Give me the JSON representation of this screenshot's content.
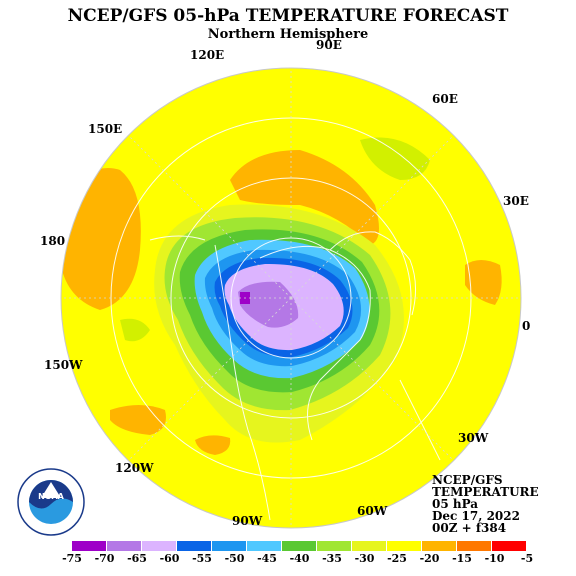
{
  "title": "NCEP/GFS 05-hPa TEMPERATURE FORECAST",
  "subtitle": "Northern Hemisphere",
  "longitude_labels": {
    "e90": "90E",
    "e120": "120E",
    "e60": "60E",
    "e150": "150E",
    "e30": "30E",
    "e180": "180",
    "e0": "0",
    "w150": "150W",
    "w30": "30W",
    "w120": "120W",
    "w60": "60W",
    "w90": "90W"
  },
  "info": {
    "line1": "NCEP/GFS",
    "line2": "TEMPERATURE",
    "line3": "05 hPa",
    "line4": "Dec 17, 2022",
    "line5": "00Z + f384"
  },
  "logo_text": "NOAA",
  "legend": {
    "ticks": [
      "-75",
      "-70",
      "-65",
      "-60",
      "-55",
      "-50",
      "-45",
      "-40",
      "-35",
      "-30",
      "-25",
      "-20",
      "-15",
      "-10",
      "-5"
    ],
    "colors": [
      "#9e00c8",
      "#b478e6",
      "#dcb4ff",
      "#0a64e6",
      "#1e96f0",
      "#50c8ff",
      "#5ac832",
      "#a0e632",
      "#e6f51e",
      "#ffff00",
      "#ffb400",
      "#ff7800",
      "#ff0000",
      "#c00000",
      "#808080"
    ]
  },
  "colors": {
    "ocean_yellow": "#ffff00",
    "orange_band": "#ffb400",
    "lime_band": "#d2f000"
  }
}
